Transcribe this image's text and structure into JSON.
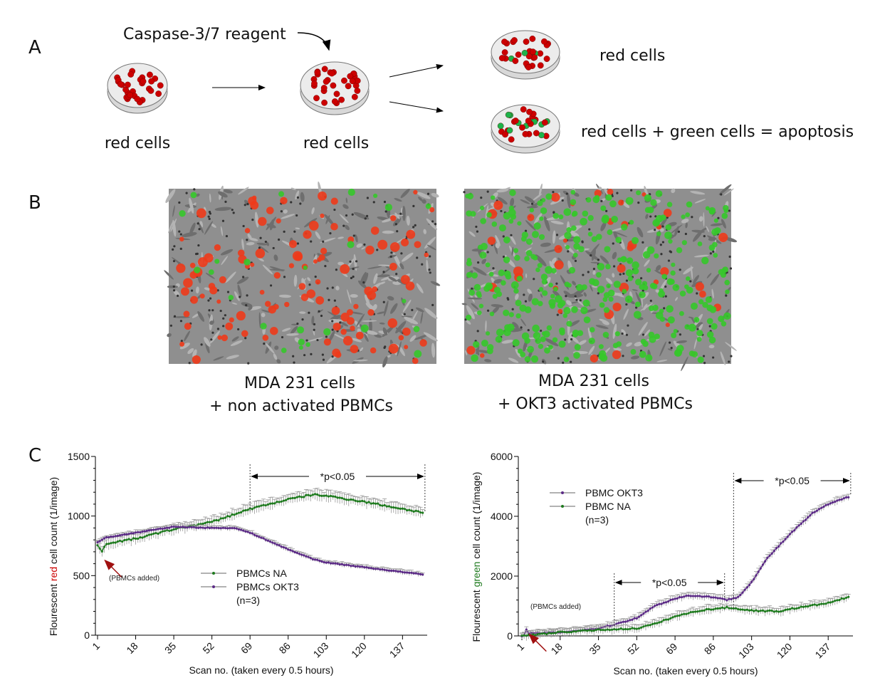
{
  "panel_a": {
    "label": "A",
    "reagent_label": "Caspase-3/7 reagent",
    "dish1_caption": "red cells",
    "dish2_caption": "red cells",
    "outcome1_caption": "red cells",
    "outcome2_caption": "red cells + green cells = apoptosis"
  },
  "panel_b": {
    "label": "B",
    "left_caption_line1": "MDA 231 cells",
    "left_caption_line2": "+ non activated PBMCs",
    "right_caption_line1": "MDA 231 cells",
    "right_caption_line2": "+ OKT3 activated PBMCs"
  },
  "panel_c": {
    "label": "C"
  },
  "colors": {
    "red": "#cc0000",
    "green": "#1e7a1e",
    "purple": "#5b2a86",
    "error": "#9a9a9a",
    "arrow_red": "#a01010"
  },
  "chart_data": [
    {
      "type": "line",
      "title": "",
      "ylabel_parts": [
        "Flourescent ",
        "red",
        " cell count (1/image)"
      ],
      "xlabel": "Scan no. (taken every 0.5 hours)",
      "xlim": [
        1,
        148
      ],
      "ylim": [
        0,
        1500
      ],
      "yticks": [
        "0",
        "500",
        "1000",
        "1500"
      ],
      "xticks": [
        "1",
        "18",
        "35",
        "52",
        "69",
        "86",
        "103",
        "120",
        "137"
      ],
      "annotation_added": "(PBMCs added)",
      "added_at": 3,
      "significance": [
        {
          "label": "*p<0.05",
          "from": 69,
          "to": 147
        }
      ],
      "legend": [
        "PBMCs NA",
        "PBMCs OKT3",
        "(n=3)"
      ],
      "series": [
        {
          "name": "PBMCs NA",
          "color": "green",
          "x": [
            1,
            3,
            5,
            18,
            35,
            52,
            69,
            86,
            97,
            103,
            120,
            137,
            146
          ],
          "y": [
            750,
            700,
            770,
            810,
            890,
            950,
            1060,
            1140,
            1180,
            1170,
            1120,
            1060,
            1030
          ],
          "err": 45
        },
        {
          "name": "PBMCs OKT3",
          "color": "purple",
          "x": [
            1,
            5,
            18,
            35,
            52,
            62,
            69,
            86,
            97,
            103,
            120,
            137,
            146
          ],
          "y": [
            780,
            820,
            860,
            910,
            900,
            900,
            860,
            720,
            640,
            610,
            570,
            530,
            510
          ],
          "err": 20
        }
      ]
    },
    {
      "type": "line",
      "title": "",
      "ylabel_parts": [
        "Flourescent ",
        "green",
        " cell count (1/image)"
      ],
      "xlabel": "Scan no. (taken every 0.5 hours)",
      "xlim": [
        1,
        148
      ],
      "ylim": [
        0,
        6000
      ],
      "yticks": [
        "0",
        "2000",
        "4000",
        "6000"
      ],
      "xticks": [
        "1",
        "18",
        "35",
        "52",
        "69",
        "86",
        "103",
        "120",
        "137"
      ],
      "annotation_added": "(PBMCs added)",
      "added_at": 3,
      "significance": [
        {
          "label": "*p<0.05",
          "from": 42,
          "to": 91
        },
        {
          "label": "*p<0.05",
          "from": 95,
          "to": 147
        }
      ],
      "legend": [
        "PBMC OKT3",
        "PBMC NA",
        "(n=3)"
      ],
      "series": [
        {
          "name": "PBMC OKT3",
          "color": "purple",
          "x": [
            1,
            2,
            3,
            4,
            18,
            35,
            42,
            52,
            60,
            69,
            75,
            86,
            92,
            97,
            103,
            110,
            120,
            130,
            137,
            146
          ],
          "y": [
            0,
            10,
            200,
            80,
            120,
            250,
            380,
            600,
            1000,
            1250,
            1350,
            1300,
            1200,
            1300,
            1800,
            2600,
            3400,
            4100,
            4400,
            4650
          ],
          "err": 120
        },
        {
          "name": "PBMC NA",
          "color": "green",
          "x": [
            1,
            18,
            35,
            52,
            60,
            69,
            80,
            92,
            103,
            115,
            120,
            137,
            146
          ],
          "y": [
            0,
            120,
            200,
            250,
            400,
            650,
            850,
            950,
            850,
            820,
            900,
            1100,
            1300
          ],
          "err": 140
        }
      ]
    }
  ]
}
